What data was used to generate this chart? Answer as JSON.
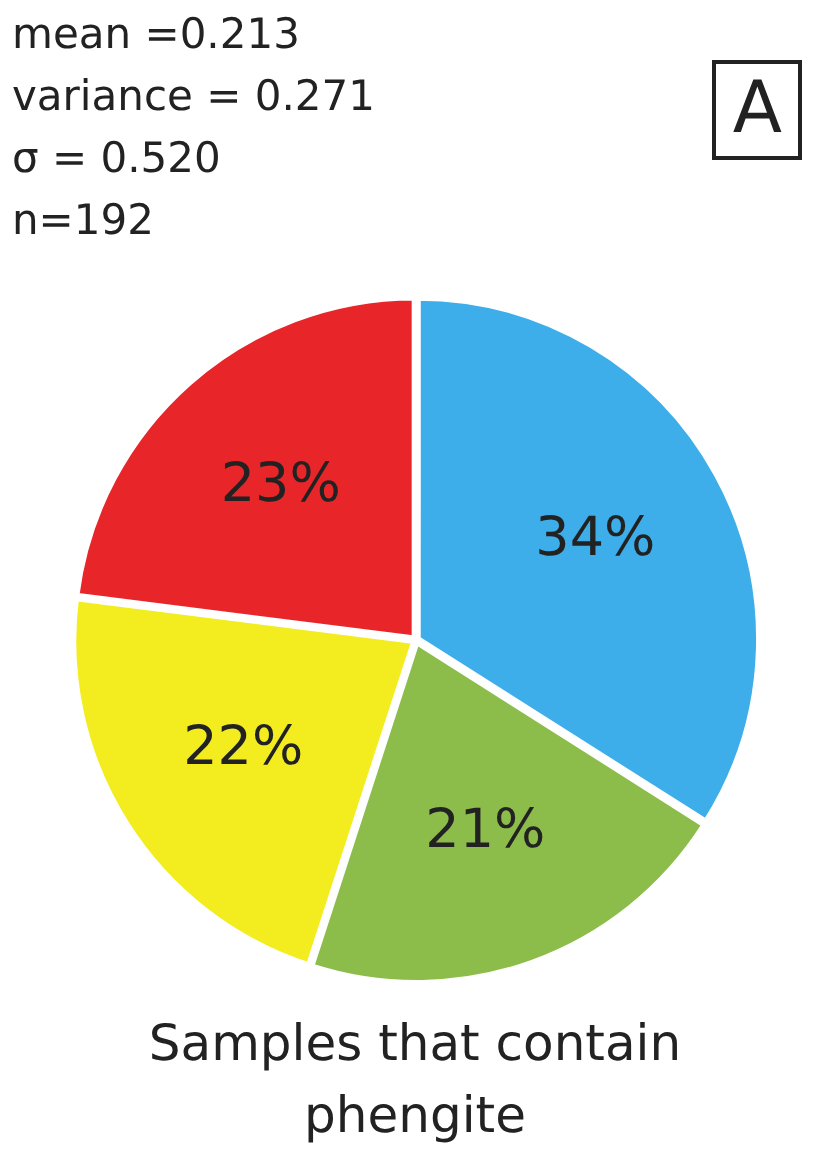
{
  "chart_data": {
    "type": "pie",
    "title": "Samples that contain phengite",
    "categories": [
      null,
      null,
      null,
      null
    ],
    "values": [
      34,
      21,
      22,
      23
    ],
    "colors": [
      "#3daee9",
      "#8cbd4a",
      "#f3ec1f",
      "#e8262a"
    ],
    "value_labels": [
      "34%",
      "21%",
      "22%",
      "23%"
    ],
    "legend": false,
    "annotations": [
      "mean =0.213",
      "variance = 0.271",
      "σ = 0.520",
      "n=192",
      "A"
    ]
  }
}
